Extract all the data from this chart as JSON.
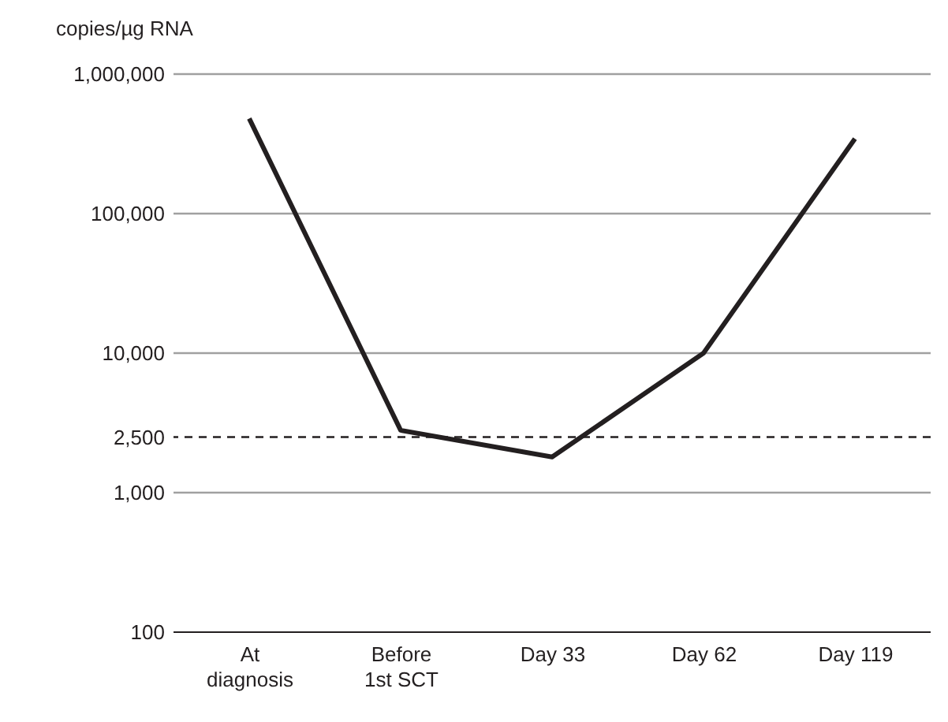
{
  "chart_data": {
    "type": "line",
    "ylabel": "copies/µg RNA",
    "categories": [
      "At diagnosis",
      "Before 1st SCT",
      "Day 33",
      "Day 62",
      "Day 119"
    ],
    "series": [
      {
        "color": "#231f20",
        "values": [
          480000,
          2800,
          1800,
          10000,
          344000
        ]
      }
    ],
    "log": "y",
    "ylim": [
      100,
      1000000
    ],
    "yticks": [
      100,
      {
        "value": 1000,
        "label": "1,000"
      },
      {
        "value": 2500,
        "label": "2,500"
      },
      {
        "value": 10000,
        "label": "10,000"
      },
      {
        "value": 100000,
        "label": "100,000"
      },
      {
        "value": 1000000,
        "label": "1,000,000"
      }
    ],
    "grid": "y",
    "marker": "none",
    "line_style": "solid",
    "ref_lines": [
      {
        "axis": "y",
        "value": 2500,
        "line_style": "dashed",
        "color": "#231f20"
      }
    ]
  }
}
